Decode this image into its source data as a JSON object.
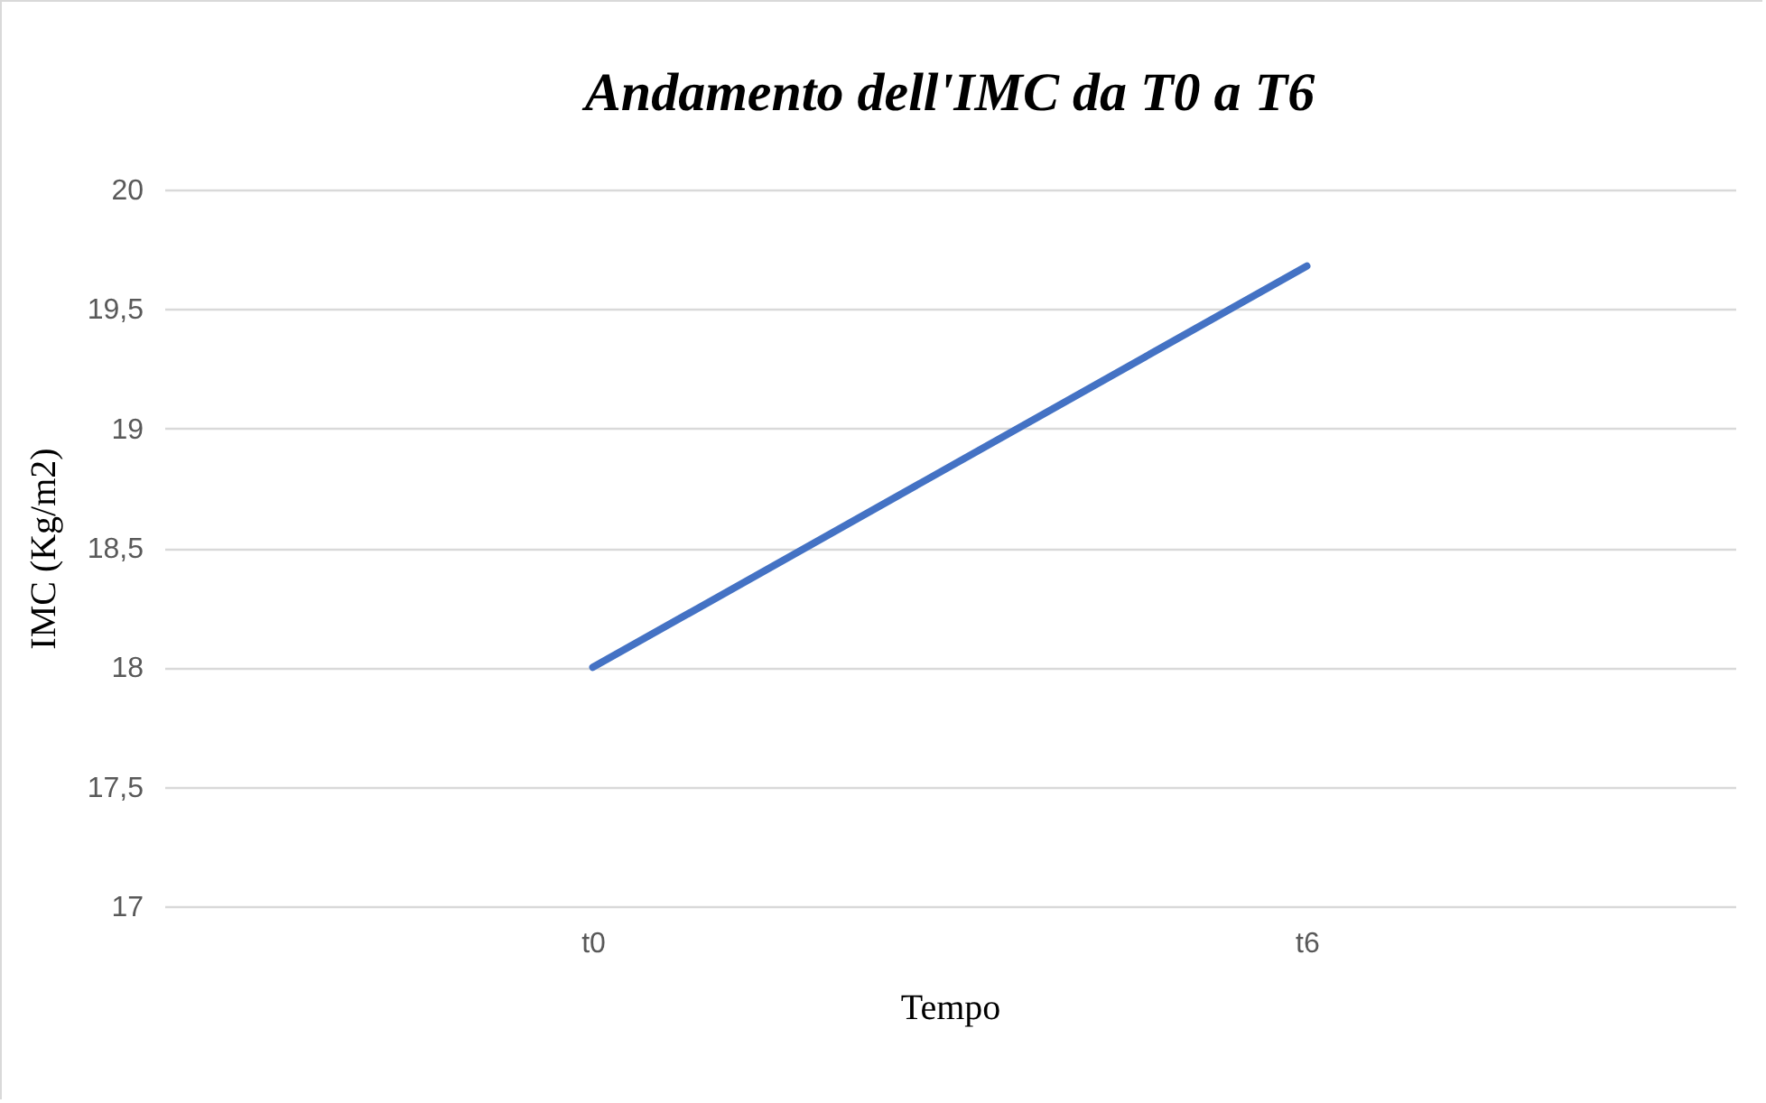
{
  "chart_data": {
    "type": "line",
    "title": "Andamento dell'IMC da T0 a T6",
    "xlabel": "Tempo",
    "ylabel": "IMC (Kg/m2)",
    "categories": [
      "t0",
      "t6"
    ],
    "series": [
      {
        "color": "#4472c4",
        "values": [
          18,
          19.68
        ]
      }
    ],
    "ylim": [
      17,
      20
    ],
    "yticks": [
      17,
      {
        "value": 17.5,
        "label": "17,5"
      },
      18,
      {
        "value": 18.5,
        "label": "18,5"
      },
      19,
      {
        "value": 19.5,
        "label": "19,5"
      },
      20
    ],
    "grid": "y",
    "marker": "none",
    "line_style": "solid",
    "legend": false
  }
}
